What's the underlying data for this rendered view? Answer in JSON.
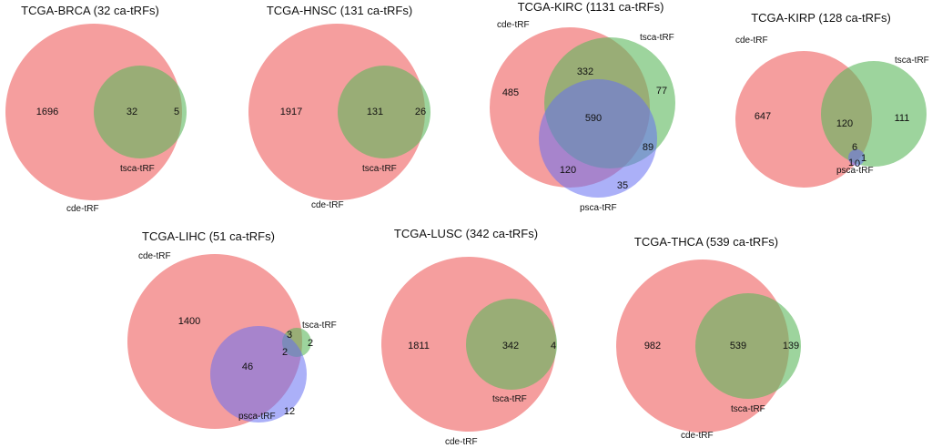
{
  "figure": {
    "panels": [
      {
        "title": "TCGA-BRCA (32 ca-tRFs)",
        "sets": [
          "cde-tRF",
          "tsca-tRF"
        ],
        "regions": {
          "cde_only": "1696",
          "cde_tsca": "32",
          "tsca_only": "5"
        }
      },
      {
        "title": "TCGA-HNSC (131 ca-tRFs)",
        "sets": [
          "cde-tRF",
          "tsca-tRF"
        ],
        "regions": {
          "cde_only": "1917",
          "cde_tsca": "131",
          "tsca_only": "26"
        }
      },
      {
        "title": "TCGA-KIRC (1131 ca-tRFs)",
        "sets": [
          "cde-tRF",
          "tsca-tRF",
          "psca-tRF"
        ],
        "regions": {
          "cde_only": "485",
          "cde_tsca": "332",
          "tsca_only": "77",
          "all_three": "590",
          "tsca_psca": "89",
          "cde_psca": "120",
          "psca_only": "35"
        }
      },
      {
        "title": "TCGA-KIRP (128 ca-tRFs)",
        "sets": [
          "cde-tRF",
          "tsca-tRF",
          "psca-tRF"
        ],
        "regions": {
          "cde_only": "647",
          "cde_tsca": "120",
          "tsca_only": "111",
          "all_three": "6",
          "cde_psca": "1",
          "psca_only": "0",
          "tsca_psca": "1"
        }
      },
      {
        "title": "TCGA-LIHC (51 ca-tRFs)",
        "sets": [
          "cde-tRF",
          "tsca-tRF",
          "psca-tRF"
        ],
        "regions": {
          "cde_only": "1400",
          "cde_tsca": "3",
          "tsca_only": "2",
          "all_three": "2",
          "cde_psca": "46",
          "psca_only": "12"
        }
      },
      {
        "title": "TCGA-LUSC (342 ca-tRFs)",
        "sets": [
          "cde-tRF",
          "tsca-tRF"
        ],
        "regions": {
          "cde_only": "1811",
          "cde_tsca": "342",
          "tsca_only": "4"
        }
      },
      {
        "title": "TCGA-THCA (539 ca-tRFs)",
        "sets": [
          "cde-tRF",
          "tsca-tRF"
        ],
        "regions": {
          "cde_only": "982",
          "cde_tsca": "539",
          "tsca_only": "139"
        }
      }
    ],
    "colors": {
      "cde": "#f06a6a",
      "tsca": "#5cb85c",
      "psca": "#6670f2"
    }
  }
}
